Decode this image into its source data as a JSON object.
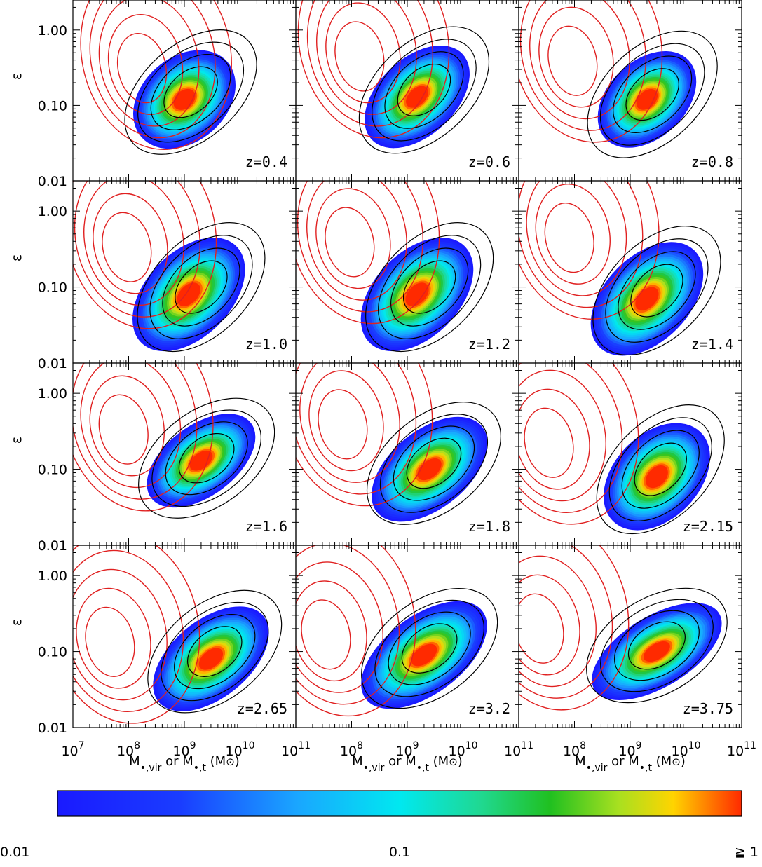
{
  "chart_data": {
    "type": "heatmap",
    "layout": {
      "rows": 4,
      "cols": 3
    },
    "x_scale": "log",
    "y_scale": "log",
    "xlim": [
      10000000.0,
      100000000000.0
    ],
    "ylim": [
      0.01,
      2.5
    ],
    "ylabel": "ε",
    "xlabel": {
      "main": "M",
      "sub1": "•,vir",
      "mid": " or M",
      "sub2": "•,t",
      "unit": " (M",
      "sun": "⊙",
      "close": ")"
    },
    "y_ticks": [
      {
        "v": 1.0,
        "label": "1.00"
      },
      {
        "v": 0.1,
        "label": "0.10"
      },
      {
        "v": 0.01,
        "label": "0.01"
      }
    ],
    "x_ticks": [
      {
        "v": 10000000.0,
        "base": "10",
        "exp": "7"
      },
      {
        "v": 100000000.0,
        "base": "10",
        "exp": "8"
      },
      {
        "v": 1000000000.0,
        "base": "10",
        "exp": "9"
      },
      {
        "v": 10000000000.0,
        "base": "10",
        "exp": "10"
      },
      {
        "v": 100000000000.0,
        "base": "10",
        "exp": "11"
      }
    ],
    "colorbar": {
      "scale": "log",
      "range": [
        0.01,
        1
      ],
      "labels": [
        {
          "v": 0.01,
          "label": "0.01"
        },
        {
          "v": 0.1,
          "label": "0.1"
        },
        {
          "v": 1,
          "label": "≧ 1"
        }
      ]
    },
    "panels": [
      {
        "label": "z=0.4",
        "density": {
          "peak": [
            1000000000.0,
            0.12
          ],
          "spread": [
            0.5,
            0.55
          ],
          "tilt": 0.65
        },
        "red_center": [
          150000000.0,
          0.28
        ],
        "black_center": [
          1300000000.0,
          0.15
        ]
      },
      {
        "label": "z=0.6",
        "density": {
          "peak": [
            1500000000.0,
            0.13
          ],
          "spread": [
            0.55,
            0.5
          ],
          "tilt": 0.7
        },
        "red_center": [
          120000000.0,
          0.4
        ],
        "black_center": [
          2000000000.0,
          0.16
        ]
      },
      {
        "label": "z=0.8",
        "density": {
          "peak": [
            2000000000.0,
            0.12
          ],
          "spread": [
            0.5,
            0.5
          ],
          "tilt": 0.7
        },
        "red_center": [
          80000000.0,
          0.35
        ],
        "black_center": [
          2500000000.0,
          0.14
        ]
      },
      {
        "label": "z=1.0",
        "density": {
          "peak": [
            1200000000.0,
            0.08
          ],
          "spread": [
            0.6,
            0.55
          ],
          "tilt": 0.75
        },
        "red_center": [
          80000000.0,
          0.3
        ],
        "black_center": [
          2000000000.0,
          0.1
        ]
      },
      {
        "label": "z=1.2",
        "density": {
          "peak": [
            1500000000.0,
            0.08
          ],
          "spread": [
            0.6,
            0.55
          ],
          "tilt": 0.75
        },
        "red_center": [
          80000000.0,
          0.35
        ],
        "black_center": [
          2500000000.0,
          0.1
        ]
      },
      {
        "label": "z=1.4",
        "density": {
          "peak": [
            2000000000.0,
            0.07
          ],
          "spread": [
            0.6,
            0.55
          ],
          "tilt": 0.75
        },
        "red_center": [
          70000000.0,
          0.4
        ],
        "black_center": [
          3000000000.0,
          0.09
        ]
      },
      {
        "label": "z=1.6",
        "density": {
          "peak": [
            2000000000.0,
            0.13
          ],
          "spread": [
            0.55,
            0.45
          ],
          "tilt": 0.55
        },
        "red_center": [
          70000000.0,
          0.3
        ],
        "black_center": [
          2500000000.0,
          0.14
        ]
      },
      {
        "label": "z=1.8",
        "density": {
          "peak": [
            2500000000.0,
            0.1
          ],
          "spread": [
            0.6,
            0.5
          ],
          "tilt": 0.6
        },
        "red_center": [
          60000000.0,
          0.35
        ],
        "black_center": [
          3000000000.0,
          0.12
        ]
      },
      {
        "label": "z=2.15",
        "density": {
          "peak": [
            3000000000.0,
            0.08
          ],
          "spread": [
            0.55,
            0.55
          ],
          "tilt": 0.75
        },
        "red_center": [
          30000000.0,
          0.2
        ],
        "black_center": [
          3500000000.0,
          0.1
        ]
      },
      {
        "label": "z=2.65",
        "density": {
          "peak": [
            3000000000.0,
            0.08
          ],
          "spread": [
            0.6,
            0.5
          ],
          "tilt": 0.6
        },
        "red_center": [
          40000000.0,
          0.12
        ],
        "black_center": [
          3500000000.0,
          0.1
        ]
      },
      {
        "label": "z=3.2",
        "density": {
          "peak": [
            2000000000.0,
            0.09
          ],
          "spread": [
            0.65,
            0.5
          ],
          "tilt": 0.55
        },
        "red_center": [
          30000000.0,
          0.15
        ],
        "black_center": [
          2500000000.0,
          0.11
        ]
      },
      {
        "label": "z=3.75",
        "density": {
          "peak": [
            3000000000.0,
            0.1
          ],
          "spread": [
            0.65,
            0.45
          ],
          "tilt": 0.45
        },
        "red_center": [
          20000000.0,
          0.18
        ],
        "black_center": [
          3000000000.0,
          0.12
        ]
      }
    ]
  }
}
